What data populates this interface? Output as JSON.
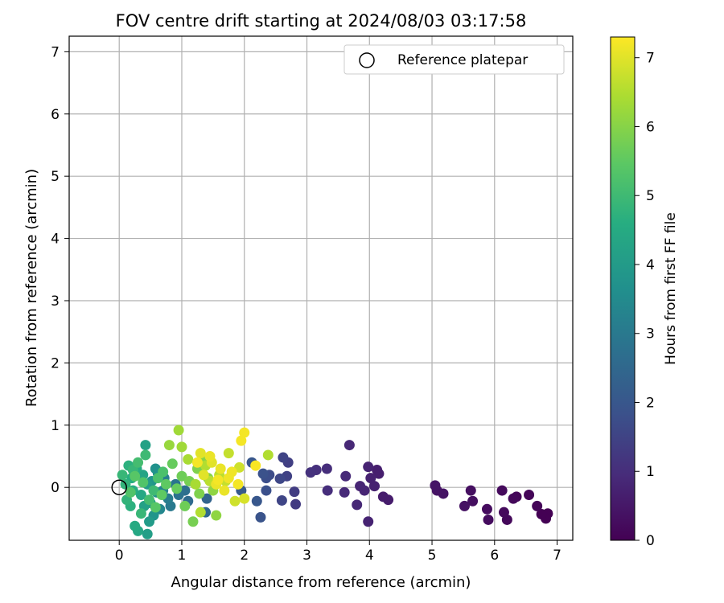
{
  "chart_data": {
    "type": "scatter",
    "title": "FOV centre drift starting at 2024/08/03 03:17:58",
    "xlabel": "Angular distance from reference (arcmin)",
    "ylabel": "Rotation from reference (arcmin)",
    "xlim": [
      -0.8,
      7.25
    ],
    "ylim": [
      -0.85,
      7.25
    ],
    "xticks": [
      0,
      1,
      2,
      3,
      4,
      5,
      6,
      7
    ],
    "yticks": [
      0,
      1,
      2,
      3,
      4,
      5,
      6,
      7
    ],
    "grid": true,
    "legend": {
      "label": "Reference platepar",
      "location": "upper right",
      "marker": "open-circle"
    },
    "reference_point": {
      "x": 0,
      "y": 0
    },
    "colorbar": {
      "label": "Hours from first FF file",
      "colormap": "viridis",
      "range": [
        0,
        7.3
      ],
      "ticks": [
        0,
        1,
        2,
        3,
        4,
        5,
        6,
        7
      ]
    },
    "points": [
      {
        "x": 6.85,
        "y": -0.42,
        "c": 0.0
      },
      {
        "x": 6.82,
        "y": -0.5,
        "c": 0.0
      },
      {
        "x": 6.75,
        "y": -0.43,
        "c": 0.0
      },
      {
        "x": 6.68,
        "y": -0.3,
        "c": 0.1
      },
      {
        "x": 6.55,
        "y": -0.12,
        "c": 0.1
      },
      {
        "x": 6.35,
        "y": -0.15,
        "c": 0.1
      },
      {
        "x": 6.3,
        "y": -0.18,
        "c": 0.15
      },
      {
        "x": 6.2,
        "y": -0.52,
        "c": 0.15
      },
      {
        "x": 6.15,
        "y": -0.4,
        "c": 0.2
      },
      {
        "x": 6.12,
        "y": -0.05,
        "c": 0.2
      },
      {
        "x": 5.9,
        "y": -0.52,
        "c": 0.25
      },
      {
        "x": 5.88,
        "y": -0.35,
        "c": 0.25
      },
      {
        "x": 5.65,
        "y": -0.22,
        "c": 0.3
      },
      {
        "x": 5.62,
        "y": -0.05,
        "c": 0.3
      },
      {
        "x": 5.52,
        "y": -0.3,
        "c": 0.35
      },
      {
        "x": 5.18,
        "y": -0.1,
        "c": 0.4
      },
      {
        "x": 5.08,
        "y": -0.05,
        "c": 0.4
      },
      {
        "x": 5.05,
        "y": 0.03,
        "c": 0.45
      },
      {
        "x": 4.3,
        "y": -0.2,
        "c": 0.6
      },
      {
        "x": 4.22,
        "y": -0.15,
        "c": 0.6
      },
      {
        "x": 4.15,
        "y": 0.22,
        "c": 0.65
      },
      {
        "x": 4.12,
        "y": 0.28,
        "c": 0.65
      },
      {
        "x": 4.08,
        "y": 0.02,
        "c": 0.7
      },
      {
        "x": 4.02,
        "y": 0.15,
        "c": 0.7
      },
      {
        "x": 3.98,
        "y": 0.33,
        "c": 0.75
      },
      {
        "x": 3.98,
        "y": -0.55,
        "c": 0.75
      },
      {
        "x": 3.92,
        "y": -0.05,
        "c": 0.8
      },
      {
        "x": 3.85,
        "y": 0.02,
        "c": 0.8
      },
      {
        "x": 3.8,
        "y": -0.28,
        "c": 0.85
      },
      {
        "x": 3.68,
        "y": 0.68,
        "c": 0.85
      },
      {
        "x": 3.62,
        "y": 0.18,
        "c": 0.9
      },
      {
        "x": 3.6,
        "y": -0.08,
        "c": 0.9
      },
      {
        "x": 3.32,
        "y": 0.3,
        "c": 1.0
      },
      {
        "x": 3.33,
        "y": -0.05,
        "c": 1.0
      },
      {
        "x": 3.15,
        "y": 0.28,
        "c": 1.05
      },
      {
        "x": 3.06,
        "y": 0.24,
        "c": 1.1
      },
      {
        "x": 2.82,
        "y": -0.27,
        "c": 1.3
      },
      {
        "x": 2.8,
        "y": -0.07,
        "c": 1.35
      },
      {
        "x": 2.7,
        "y": 0.4,
        "c": 1.4
      },
      {
        "x": 2.68,
        "y": 0.18,
        "c": 1.45
      },
      {
        "x": 2.62,
        "y": 0.48,
        "c": 1.5
      },
      {
        "x": 2.6,
        "y": -0.21,
        "c": 1.55
      },
      {
        "x": 2.57,
        "y": 0.14,
        "c": 1.6
      },
      {
        "x": 2.4,
        "y": 0.2,
        "c": 1.7
      },
      {
        "x": 2.35,
        "y": 0.15,
        "c": 1.75
      },
      {
        "x": 2.35,
        "y": -0.05,
        "c": 1.8
      },
      {
        "x": 2.3,
        "y": 0.22,
        "c": 1.85
      },
      {
        "x": 2.26,
        "y": -0.48,
        "c": 1.9
      },
      {
        "x": 2.2,
        "y": -0.22,
        "c": 2.0
      },
      {
        "x": 2.12,
        "y": 0.4,
        "c": 2.0
      },
      {
        "x": 1.95,
        "y": -0.05,
        "c": 2.1
      },
      {
        "x": 1.4,
        "y": -0.18,
        "c": 2.4
      },
      {
        "x": 1.38,
        "y": -0.4,
        "c": 2.5
      },
      {
        "x": 1.1,
        "y": -0.22,
        "c": 2.6
      },
      {
        "x": 1.05,
        "y": -0.05,
        "c": 2.7
      },
      {
        "x": 0.95,
        "y": -0.12,
        "c": 2.8
      },
      {
        "x": 0.9,
        "y": 0.05,
        "c": 2.9
      },
      {
        "x": 0.82,
        "y": -0.3,
        "c": 3.0
      },
      {
        "x": 0.78,
        "y": -0.18,
        "c": 3.1
      },
      {
        "x": 0.72,
        "y": 0.15,
        "c": 3.2
      },
      {
        "x": 0.7,
        "y": -0.05,
        "c": 3.3
      },
      {
        "x": 0.65,
        "y": -0.35,
        "c": 3.4
      },
      {
        "x": 0.62,
        "y": 0.22,
        "c": 3.5
      },
      {
        "x": 0.6,
        "y": -0.08,
        "c": 3.6
      },
      {
        "x": 0.58,
        "y": 0.3,
        "c": 3.7
      },
      {
        "x": 0.55,
        "y": -0.45,
        "c": 3.8
      },
      {
        "x": 0.52,
        "y": 0.1,
        "c": 3.8
      },
      {
        "x": 0.5,
        "y": -0.25,
        "c": 3.9
      },
      {
        "x": 0.48,
        "y": -0.55,
        "c": 4.0
      },
      {
        "x": 0.45,
        "y": 0.05,
        "c": 4.0
      },
      {
        "x": 0.45,
        "y": -0.75,
        "c": 4.1
      },
      {
        "x": 0.42,
        "y": 0.68,
        "c": 4.2
      },
      {
        "x": 0.4,
        "y": -0.3,
        "c": 4.2
      },
      {
        "x": 0.38,
        "y": 0.2,
        "c": 4.3
      },
      {
        "x": 0.35,
        "y": -0.12,
        "c": 4.4
      },
      {
        "x": 0.3,
        "y": -0.7,
        "c": 4.4
      },
      {
        "x": 0.28,
        "y": 0.3,
        "c": 4.5
      },
      {
        "x": 0.25,
        "y": -0.62,
        "c": 4.5
      },
      {
        "x": 0.22,
        "y": -0.05,
        "c": 4.6
      },
      {
        "x": 0.2,
        "y": 0.15,
        "c": 4.6
      },
      {
        "x": 0.18,
        "y": -0.3,
        "c": 4.7
      },
      {
        "x": 0.15,
        "y": 0.35,
        "c": 4.7
      },
      {
        "x": 0.12,
        "y": -0.2,
        "c": 4.8
      },
      {
        "x": 0.1,
        "y": 0.05,
        "c": 4.8
      },
      {
        "x": 0.05,
        "y": 0.2,
        "c": 4.9
      },
      {
        "x": 0.22,
        "y": 0.28,
        "c": 4.9
      },
      {
        "x": 0.35,
        "y": -0.42,
        "c": 4.9
      },
      {
        "x": 0.55,
        "y": -0.05,
        "c": 5.0
      },
      {
        "x": 0.42,
        "y": 0.52,
        "c": 5.0
      },
      {
        "x": 0.3,
        "y": 0.4,
        "c": 5.1
      },
      {
        "x": 0.48,
        "y": -0.2,
        "c": 5.1
      },
      {
        "x": 0.62,
        "y": 0.15,
        "c": 5.2
      },
      {
        "x": 0.7,
        "y": 0.25,
        "c": 5.2
      },
      {
        "x": 0.38,
        "y": 0.08,
        "c": 5.3
      },
      {
        "x": 0.18,
        "y": -0.08,
        "c": 5.3
      },
      {
        "x": 0.25,
        "y": 0.18,
        "c": 5.4
      },
      {
        "x": 0.58,
        "y": -0.32,
        "c": 5.4
      },
      {
        "x": 0.75,
        "y": 0.05,
        "c": 5.5
      },
      {
        "x": 0.68,
        "y": -0.12,
        "c": 5.5
      },
      {
        "x": 0.85,
        "y": 0.38,
        "c": 5.6
      },
      {
        "x": 0.92,
        "y": -0.02,
        "c": 5.6
      },
      {
        "x": 1.0,
        "y": 0.18,
        "c": 5.7
      },
      {
        "x": 1.05,
        "y": -0.3,
        "c": 5.7
      },
      {
        "x": 1.12,
        "y": 0.1,
        "c": 5.8
      },
      {
        "x": 1.18,
        "y": -0.55,
        "c": 5.8
      },
      {
        "x": 1.25,
        "y": 0.3,
        "c": 5.9
      },
      {
        "x": 1.28,
        "y": -0.1,
        "c": 5.9
      },
      {
        "x": 1.35,
        "y": 0.45,
        "c": 6.0
      },
      {
        "x": 1.42,
        "y": 0.15,
        "c": 6.0
      },
      {
        "x": 1.5,
        "y": -0.05,
        "c": 6.1
      },
      {
        "x": 1.55,
        "y": -0.45,
        "c": 6.1
      },
      {
        "x": 0.8,
        "y": 0.68,
        "c": 6.2
      },
      {
        "x": 0.95,
        "y": 0.92,
        "c": 6.3
      },
      {
        "x": 1.0,
        "y": 0.65,
        "c": 6.3
      },
      {
        "x": 1.1,
        "y": 0.45,
        "c": 6.4
      },
      {
        "x": 1.22,
        "y": 0.05,
        "c": 6.4
      },
      {
        "x": 1.3,
        "y": -0.4,
        "c": 6.5
      },
      {
        "x": 1.38,
        "y": 0.35,
        "c": 6.5
      },
      {
        "x": 1.45,
        "y": 0.1,
        "c": 6.6
      },
      {
        "x": 1.6,
        "y": 0.2,
        "c": 6.6
      },
      {
        "x": 1.7,
        "y": 0.1,
        "c": 6.7
      },
      {
        "x": 1.75,
        "y": 0.55,
        "c": 6.7
      },
      {
        "x": 1.85,
        "y": -0.22,
        "c": 6.8
      },
      {
        "x": 1.92,
        "y": 0.32,
        "c": 6.8
      },
      {
        "x": 2.0,
        "y": -0.18,
        "c": 6.9
      },
      {
        "x": 2.38,
        "y": 0.52,
        "c": 6.5
      },
      {
        "x": 1.3,
        "y": 0.55,
        "c": 7.0
      },
      {
        "x": 1.35,
        "y": 0.2,
        "c": 7.0
      },
      {
        "x": 1.48,
        "y": 0.4,
        "c": 7.0
      },
      {
        "x": 1.55,
        "y": 0.05,
        "c": 7.1
      },
      {
        "x": 1.62,
        "y": 0.3,
        "c": 7.1
      },
      {
        "x": 1.68,
        "y": -0.05,
        "c": 7.1
      },
      {
        "x": 1.75,
        "y": 0.15,
        "c": 7.15
      },
      {
        "x": 1.8,
        "y": 0.25,
        "c": 7.15
      },
      {
        "x": 1.9,
        "y": 0.05,
        "c": 7.2
      },
      {
        "x": 1.95,
        "y": 0.75,
        "c": 7.2
      },
      {
        "x": 2.0,
        "y": 0.88,
        "c": 7.2
      },
      {
        "x": 2.18,
        "y": 0.35,
        "c": 7.25
      },
      {
        "x": 1.25,
        "y": 0.4,
        "c": 7.2
      },
      {
        "x": 1.45,
        "y": 0.5,
        "c": 7.1
      },
      {
        "x": 1.58,
        "y": 0.12,
        "c": 7.2
      }
    ]
  }
}
